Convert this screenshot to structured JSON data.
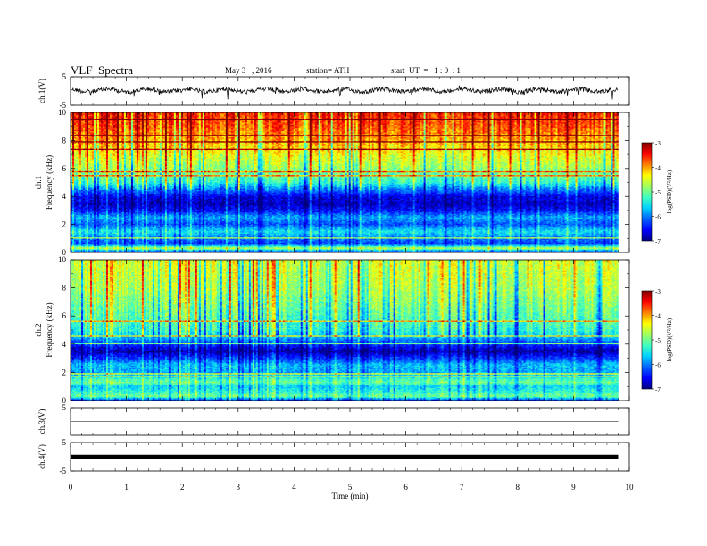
{
  "header": {
    "title": "VLF  Spectra",
    "date": "May 3   , 2016",
    "station": "station= ATH",
    "start": "start  UT  =   1 : 0  : 1"
  },
  "chart_data": [
    {
      "type": "line",
      "panel": "ch1-waveform",
      "ylabel": "ch.1(V)",
      "ylim": [
        -5,
        5
      ],
      "y_ticks": [
        "5",
        "-5"
      ],
      "xlim": [
        0,
        10
      ],
      "description_level": 0.2,
      "color": "#000000"
    },
    {
      "type": "heatmap",
      "panel": "ch1-spectrogram",
      "ylabel_channel": "ch.1",
      "ylabel": "Frequency  (kHz)",
      "ylim": [
        0,
        10
      ],
      "y_ticks": [
        "0",
        "2",
        "4",
        "6",
        "8",
        "10"
      ],
      "xlim": [
        0,
        10
      ],
      "data_extent_min": 9.8,
      "colorbar": {
        "label": "log(PSD)(V²/Hz)",
        "range": [
          -7,
          -3
        ],
        "ticks": [
          "-3",
          "-4",
          "-5",
          "-6",
          "-7"
        ]
      },
      "freq_profile_log_psd": [
        [
          0,
          -6.6
        ],
        [
          0.3,
          -4.6
        ],
        [
          0.6,
          -6.3
        ],
        [
          1,
          -6.0
        ],
        [
          1.5,
          -5.5
        ],
        [
          2,
          -6.2
        ],
        [
          2.5,
          -5.8
        ],
        [
          3,
          -6.5
        ],
        [
          3.5,
          -6.8
        ],
        [
          4,
          -6.6
        ],
        [
          4.5,
          -6.0
        ],
        [
          5,
          -5.3
        ],
        [
          6,
          -4.8
        ],
        [
          7,
          -4.4
        ],
        [
          8,
          -4.0
        ],
        [
          9,
          -3.7
        ],
        [
          10,
          -3.5
        ]
      ]
    },
    {
      "type": "heatmap",
      "panel": "ch2-spectrogram",
      "ylabel_channel": "ch.2",
      "ylabel": "Frequency  (kHz)",
      "ylim": [
        0,
        10
      ],
      "y_ticks": [
        "0",
        "2",
        "4",
        "6",
        "8",
        "10"
      ],
      "xlim": [
        0,
        10
      ],
      "data_extent_min": 9.8,
      "colorbar": {
        "label": "log(PSD)(V²/Hz)",
        "range": [
          -7,
          -3
        ],
        "ticks": [
          "-3",
          "-4",
          "-5",
          "-6",
          "-7"
        ]
      },
      "freq_profile_log_psd": [
        [
          0,
          -6.4
        ],
        [
          0.3,
          -5.0
        ],
        [
          0.7,
          -5.4
        ],
        [
          1,
          -5.6
        ],
        [
          1.3,
          -5.0
        ],
        [
          2,
          -5.8
        ],
        [
          2.5,
          -5.7
        ],
        [
          3,
          -6.3
        ],
        [
          3.5,
          -6.9
        ],
        [
          4,
          -6.3
        ],
        [
          4.5,
          -5.7
        ],
        [
          5,
          -5.3
        ],
        [
          6,
          -5.1
        ],
        [
          7,
          -4.9
        ],
        [
          8,
          -4.7
        ],
        [
          9,
          -4.6
        ],
        [
          10,
          -4.5
        ]
      ]
    },
    {
      "type": "line",
      "panel": "ch3-waveform",
      "ylabel": "ch.3(V)",
      "ylim": [
        -5,
        5
      ],
      "y_ticks": [
        "5"
      ],
      "xlim": [
        0,
        10
      ],
      "level": 0
    },
    {
      "type": "line",
      "panel": "ch4-waveform",
      "ylabel": "ch.4(V)",
      "ylim": [
        -5,
        5
      ],
      "y_ticks": [
        "5",
        "-5"
      ],
      "xlim": [
        0,
        10
      ],
      "level": 0
    }
  ],
  "x_axis": {
    "label": "Time  (min)",
    "ticks": [
      "0",
      "1",
      "2",
      "3",
      "4",
      "5",
      "6",
      "7",
      "8",
      "9",
      "10"
    ]
  },
  "colormap": [
    "#000080",
    "#0000ff",
    "#0060ff",
    "#00d0ff",
    "#40ffc0",
    "#a0ff60",
    "#ffff00",
    "#ff8000",
    "#ff0000",
    "#800000"
  ]
}
